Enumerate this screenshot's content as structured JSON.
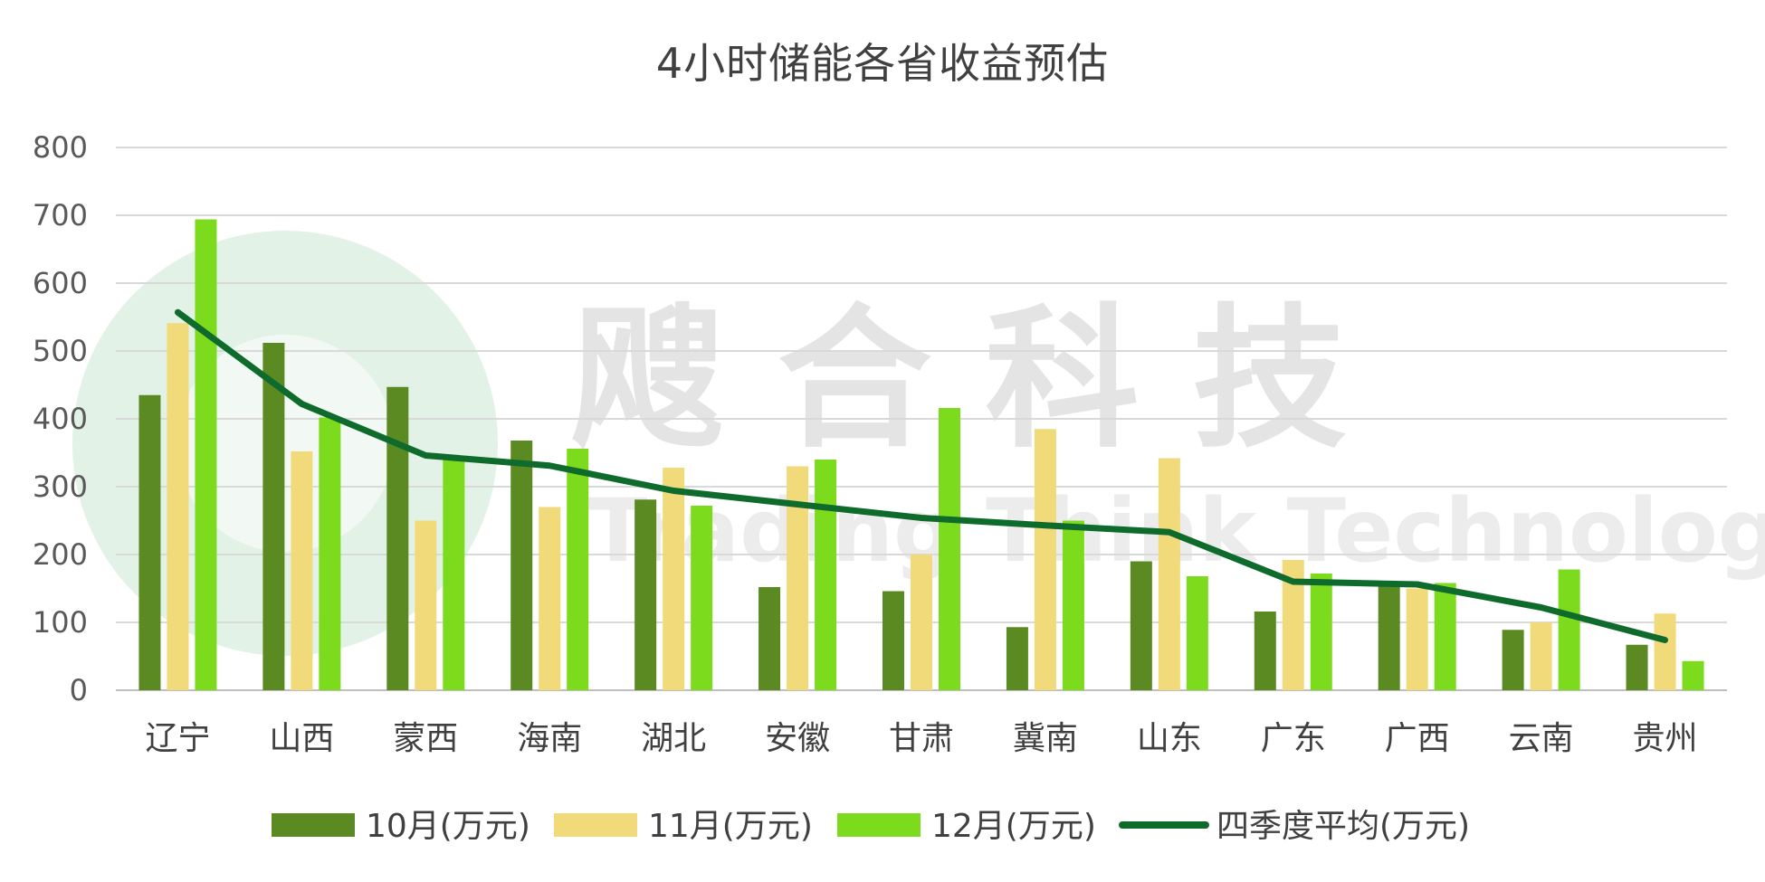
{
  "chart_data": {
    "type": "bar",
    "title": "4小时储能各省收益预估",
    "xlabel": "",
    "ylabel": "",
    "ylim": [
      0,
      800
    ],
    "yticks": [
      0,
      100,
      200,
      300,
      400,
      500,
      600,
      700,
      800
    ],
    "grid": true,
    "legend_position": "bottom",
    "categories": [
      "辽宁",
      "山西",
      "蒙西",
      "海南",
      "湖北",
      "安徽",
      "甘肃",
      "冀南",
      "山东",
      "广东",
      "广西",
      "云南",
      "贵州"
    ],
    "series": [
      {
        "name": "10月(万元)",
        "type": "bar",
        "color": "#5b8a22",
        "values": [
          435,
          512,
          447,
          368,
          281,
          152,
          146,
          93,
          190,
          116,
          160,
          89,
          67
        ]
      },
      {
        "name": "11月(万元)",
        "type": "bar",
        "color": "#f0da7a",
        "values": [
          541,
          352,
          250,
          270,
          328,
          330,
          200,
          385,
          342,
          192,
          150,
          100,
          113
        ]
      },
      {
        "name": "12月(万元)",
        "type": "bar",
        "color": "#7ddb1e",
        "values": [
          694,
          402,
          340,
          356,
          272,
          340,
          416,
          250,
          168,
          172,
          158,
          178,
          43
        ]
      },
      {
        "name": "四季度平均(万元)",
        "type": "line",
        "color": "#0f6b2c",
        "values": [
          557,
          422,
          346,
          331,
          294,
          274,
          254,
          243,
          233,
          160,
          156,
          122,
          74
        ]
      }
    ],
    "watermark": {
      "cn": "飕 合 科 技",
      "en": "Trading Think Technology"
    }
  }
}
